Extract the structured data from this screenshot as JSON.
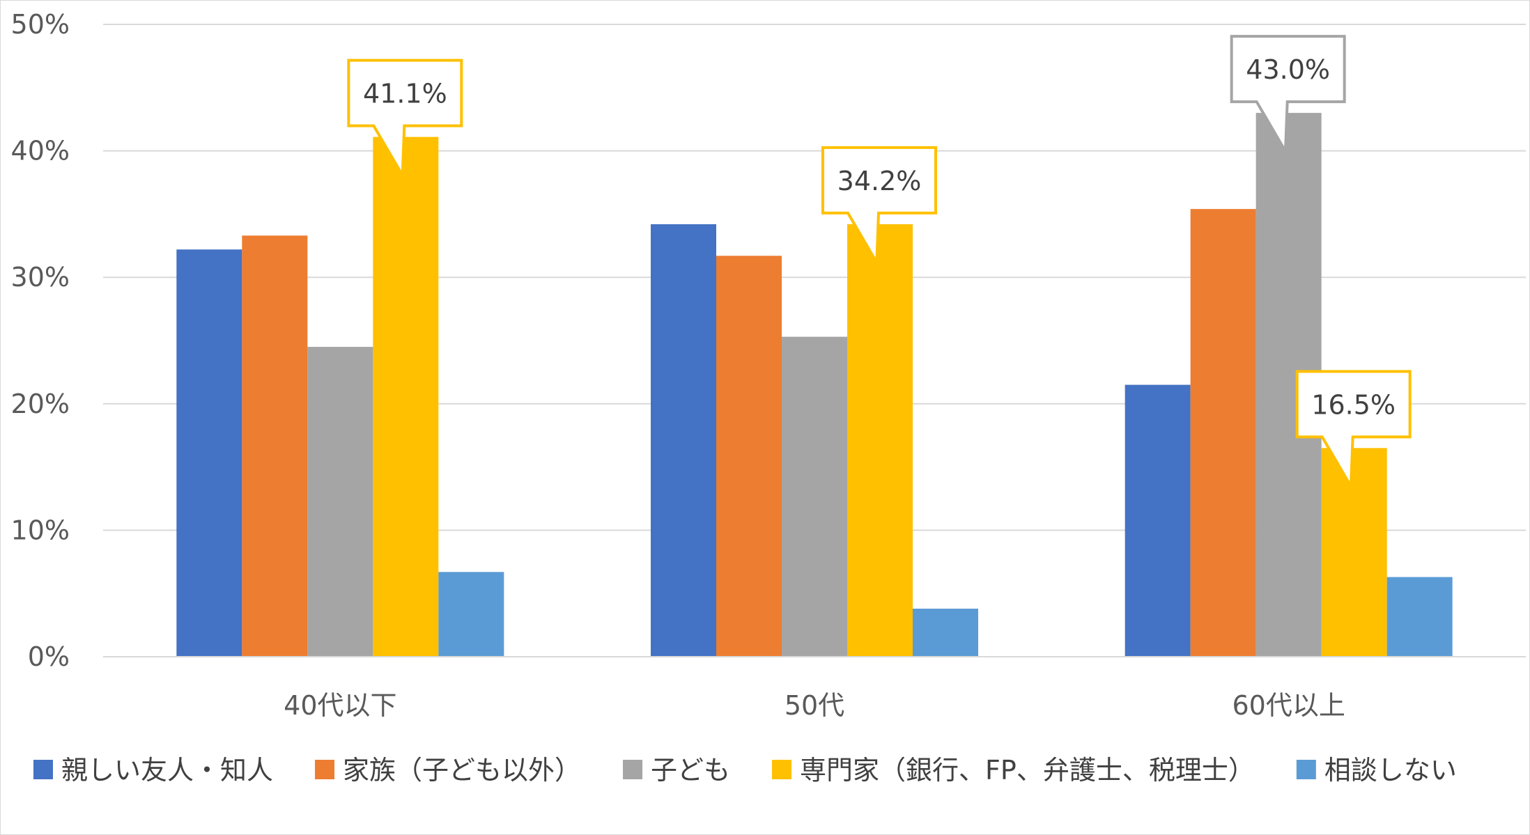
{
  "chart_data": {
    "type": "bar",
    "categories": [
      "40代以下",
      "50代",
      "60代以上"
    ],
    "series": [
      {
        "name": "親しい友人・知人",
        "color": "#4472C4",
        "values": [
          32.2,
          34.2,
          21.5
        ]
      },
      {
        "name": "家族（子ども以外）",
        "color": "#ED7D31",
        "values": [
          33.3,
          31.7,
          35.4
        ]
      },
      {
        "name": "子ども",
        "color": "#A5A5A5",
        "values": [
          24.5,
          25.3,
          43.0
        ]
      },
      {
        "name": "専門家（銀行、FP、弁護士、税理士）",
        "color": "#FFC000",
        "values": [
          41.1,
          34.2,
          16.5
        ]
      },
      {
        "name": "相談しない",
        "color": "#5B9BD5",
        "values": [
          6.7,
          3.8,
          6.3
        ]
      }
    ],
    "ylim": [
      0,
      50
    ],
    "yticks": [
      "0%",
      "10%",
      "20%",
      "30%",
      "40%",
      "50%"
    ],
    "y_tick_values": [
      0,
      10,
      20,
      30,
      40,
      50
    ],
    "grid": true,
    "legend_position": "bottom",
    "callouts": [
      {
        "label": "41.1%",
        "category": 0,
        "series": 3,
        "color": "#FFC000"
      },
      {
        "label": "34.2%",
        "category": 1,
        "series": 3,
        "color": "#FFC000"
      },
      {
        "label": "43.0%",
        "category": 2,
        "series": 2,
        "color": "#A5A5A5"
      },
      {
        "label": "16.5%",
        "category": 2,
        "series": 3,
        "color": "#FFC000"
      }
    ]
  }
}
